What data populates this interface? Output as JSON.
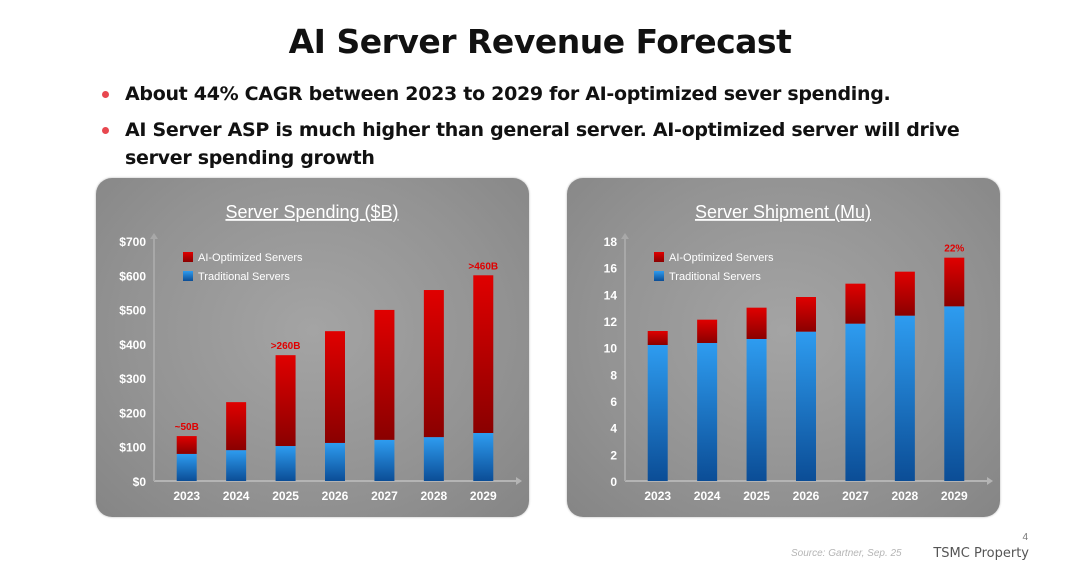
{
  "slide": {
    "title": "AI Server Revenue Forecast",
    "bullets": [
      "About 44% CAGR between 2023 to 2029 for AI-optimized sever spending.",
      "AI Server ASP is much higher than general server. AI-optimized server will drive server spending growth"
    ],
    "bullet_color": "#e8474f",
    "footer": {
      "source": "Source: Gartner, Sep. 25",
      "property": "TSMC Property",
      "page_number": "4"
    }
  },
  "chart_data": [
    {
      "type": "bar",
      "stacked": true,
      "title": "Server Spending ($B)",
      "xlabel": "",
      "ylabel": "",
      "categories": [
        "2023",
        "2024",
        "2025",
        "2026",
        "2027",
        "2028",
        "2029"
      ],
      "ylim": [
        0,
        700
      ],
      "yticks": [
        0,
        100,
        200,
        300,
        400,
        500,
        600,
        700
      ],
      "ytick_labels": [
        "$0",
        "$100",
        "$200",
        "$300",
        "$400",
        "$500",
        "$600",
        "$700"
      ],
      "grid": false,
      "legend": "top-left",
      "series": [
        {
          "name": "Traditional Servers",
          "color": "#1f7fd6",
          "values": [
            79,
            90,
            102,
            111,
            120,
            128,
            140
          ]
        },
        {
          "name": "AI-Optimized Servers",
          "color": "#d40000",
          "values": [
            52,
            140,
            265,
            326,
            379,
            429,
            460
          ]
        }
      ],
      "annotations": [
        {
          "category": "2023",
          "text": "~50B"
        },
        {
          "category": "2025",
          "text": ">260B"
        },
        {
          "category": "2029",
          "text": ">460B"
        }
      ],
      "legend_order": [
        "AI-Optimized Servers",
        "Traditional Servers"
      ]
    },
    {
      "type": "bar",
      "stacked": true,
      "title": "Server Shipment (Mu)",
      "xlabel": "",
      "ylabel": "",
      "categories": [
        "2023",
        "2024",
        "2025",
        "2026",
        "2027",
        "2028",
        "2029"
      ],
      "ylim": [
        0,
        18
      ],
      "yticks": [
        0,
        2,
        4,
        6,
        8,
        10,
        12,
        14,
        16,
        18
      ],
      "ytick_labels": [
        "0",
        "2",
        "4",
        "6",
        "8",
        "10",
        "12",
        "14",
        "16",
        "18"
      ],
      "grid": false,
      "legend": "top-left",
      "series": [
        {
          "name": "Traditional Servers",
          "color": "#1f7fd6",
          "values": [
            10.2,
            10.35,
            10.65,
            11.2,
            11.8,
            12.4,
            13.1
          ]
        },
        {
          "name": "AI-Optimized Servers",
          "color": "#d40000",
          "values": [
            1.05,
            1.75,
            2.35,
            2.6,
            3.0,
            3.3,
            3.65
          ]
        }
      ],
      "annotations": [
        {
          "category": "2029",
          "text": "22%"
        }
      ],
      "legend_order": [
        "AI-Optimized Servers",
        "Traditional Servers"
      ]
    }
  ]
}
